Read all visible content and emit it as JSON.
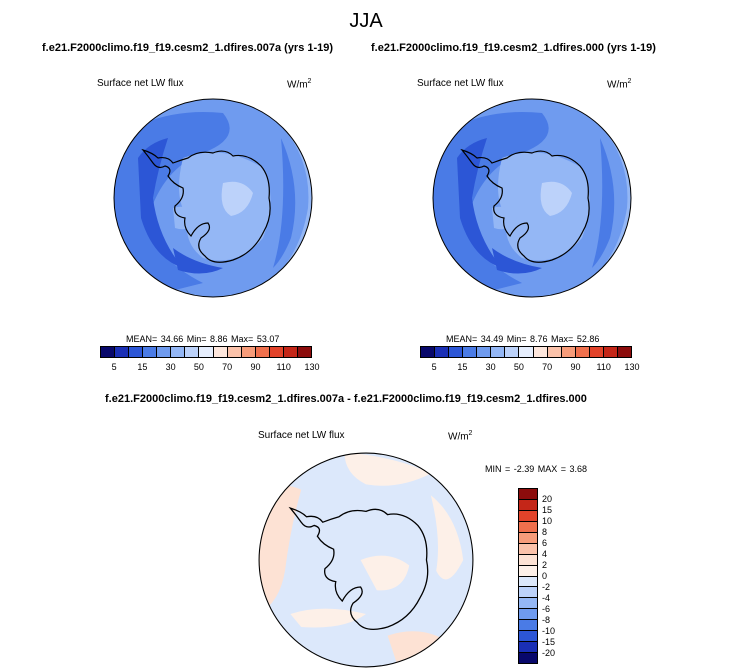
{
  "figure": {
    "title": "JJA",
    "panels": [
      {
        "case": "f.e21.F2000climo.f19_f19.cesm2_1.dfires.007a (yrs 1-19)",
        "variable": "Surface net LW flux",
        "units": "W/m",
        "units_exp": "2",
        "stats": "MEAN= 34.66  Min=  8.86  Max= 53.07"
      },
      {
        "case": "f.e21.F2000climo.f19_f19.cesm2_1.dfires.000 (yrs 1-19)",
        "variable": "Surface net LW flux",
        "units": "W/m",
        "units_exp": "2",
        "stats": "MEAN= 34.49  Min=  8.76  Max= 52.86"
      }
    ],
    "diff_panel": {
      "case": "f.e21.F2000climo.f19_f19.cesm2_1.dfires.007a - f.e21.F2000climo.f19_f19.cesm2_1.dfires.000",
      "variable": "Surface net LW flux",
      "units": "W/m",
      "units_exp": "2",
      "stats": "MIN = -2.39 MAX =  3.68"
    },
    "colorbar": {
      "ticks": [
        "5",
        "15",
        "30",
        "50",
        "70",
        "90",
        "110",
        "130"
      ],
      "colors": [
        "#08086b",
        "#1a2fb5",
        "#2c56d6",
        "#4a7be6",
        "#6f9bef",
        "#94b7f5",
        "#bcd2fa",
        "#e6eefd",
        "#fde6dc",
        "#fbc2aa",
        "#f79c7a",
        "#ef704d",
        "#e2432a",
        "#c42618",
        "#8c0c0c"
      ]
    },
    "diff_colorbar": {
      "ticks": [
        "20",
        "15",
        "10",
        "8",
        "6",
        "4",
        "2",
        "0",
        "-2",
        "-4",
        "-6",
        "-8",
        "-10",
        "-15",
        "-20"
      ],
      "colors": [
        "#8c0c0c",
        "#c42618",
        "#e2432a",
        "#ef704d",
        "#f79c7a",
        "#fbc2aa",
        "#fde2d4",
        "#fdf0e8",
        "#dce8fb",
        "#bcd2fa",
        "#94b7f5",
        "#6f9bef",
        "#4a7be6",
        "#2c56d6",
        "#1a2fb5",
        "#08086b"
      ]
    }
  },
  "chart_data": [
    {
      "type": "heatmap",
      "title": "f.e21.F2000climo.f19_f19.cesm2_1.dfires.007a (yrs 1-19)",
      "variable": "Surface net LW flux",
      "units": "W/m2",
      "projection": "south polar stereographic",
      "mean": 34.66,
      "min": 8.86,
      "max": 53.07,
      "colorbar_levels": [
        5,
        15,
        30,
        50,
        70,
        90,
        110,
        130
      ]
    },
    {
      "type": "heatmap",
      "title": "f.e21.F2000climo.f19_f19.cesm2_1.dfires.000 (yrs 1-19)",
      "variable": "Surface net LW flux",
      "units": "W/m2",
      "projection": "south polar stereographic",
      "mean": 34.49,
      "min": 8.76,
      "max": 52.86,
      "colorbar_levels": [
        5,
        15,
        30,
        50,
        70,
        90,
        110,
        130
      ]
    },
    {
      "type": "heatmap",
      "title": "f.e21.F2000climo.f19_f19.cesm2_1.dfires.007a - f.e21.F2000climo.f19_f19.cesm2_1.dfires.000",
      "variable": "Surface net LW flux",
      "units": "W/m2",
      "projection": "south polar stereographic",
      "min": -2.39,
      "max": 3.68,
      "colorbar_levels": [
        -20,
        -15,
        -10,
        -8,
        -6,
        -4,
        -2,
        0,
        2,
        4,
        6,
        8,
        10,
        15,
        20
      ]
    }
  ]
}
